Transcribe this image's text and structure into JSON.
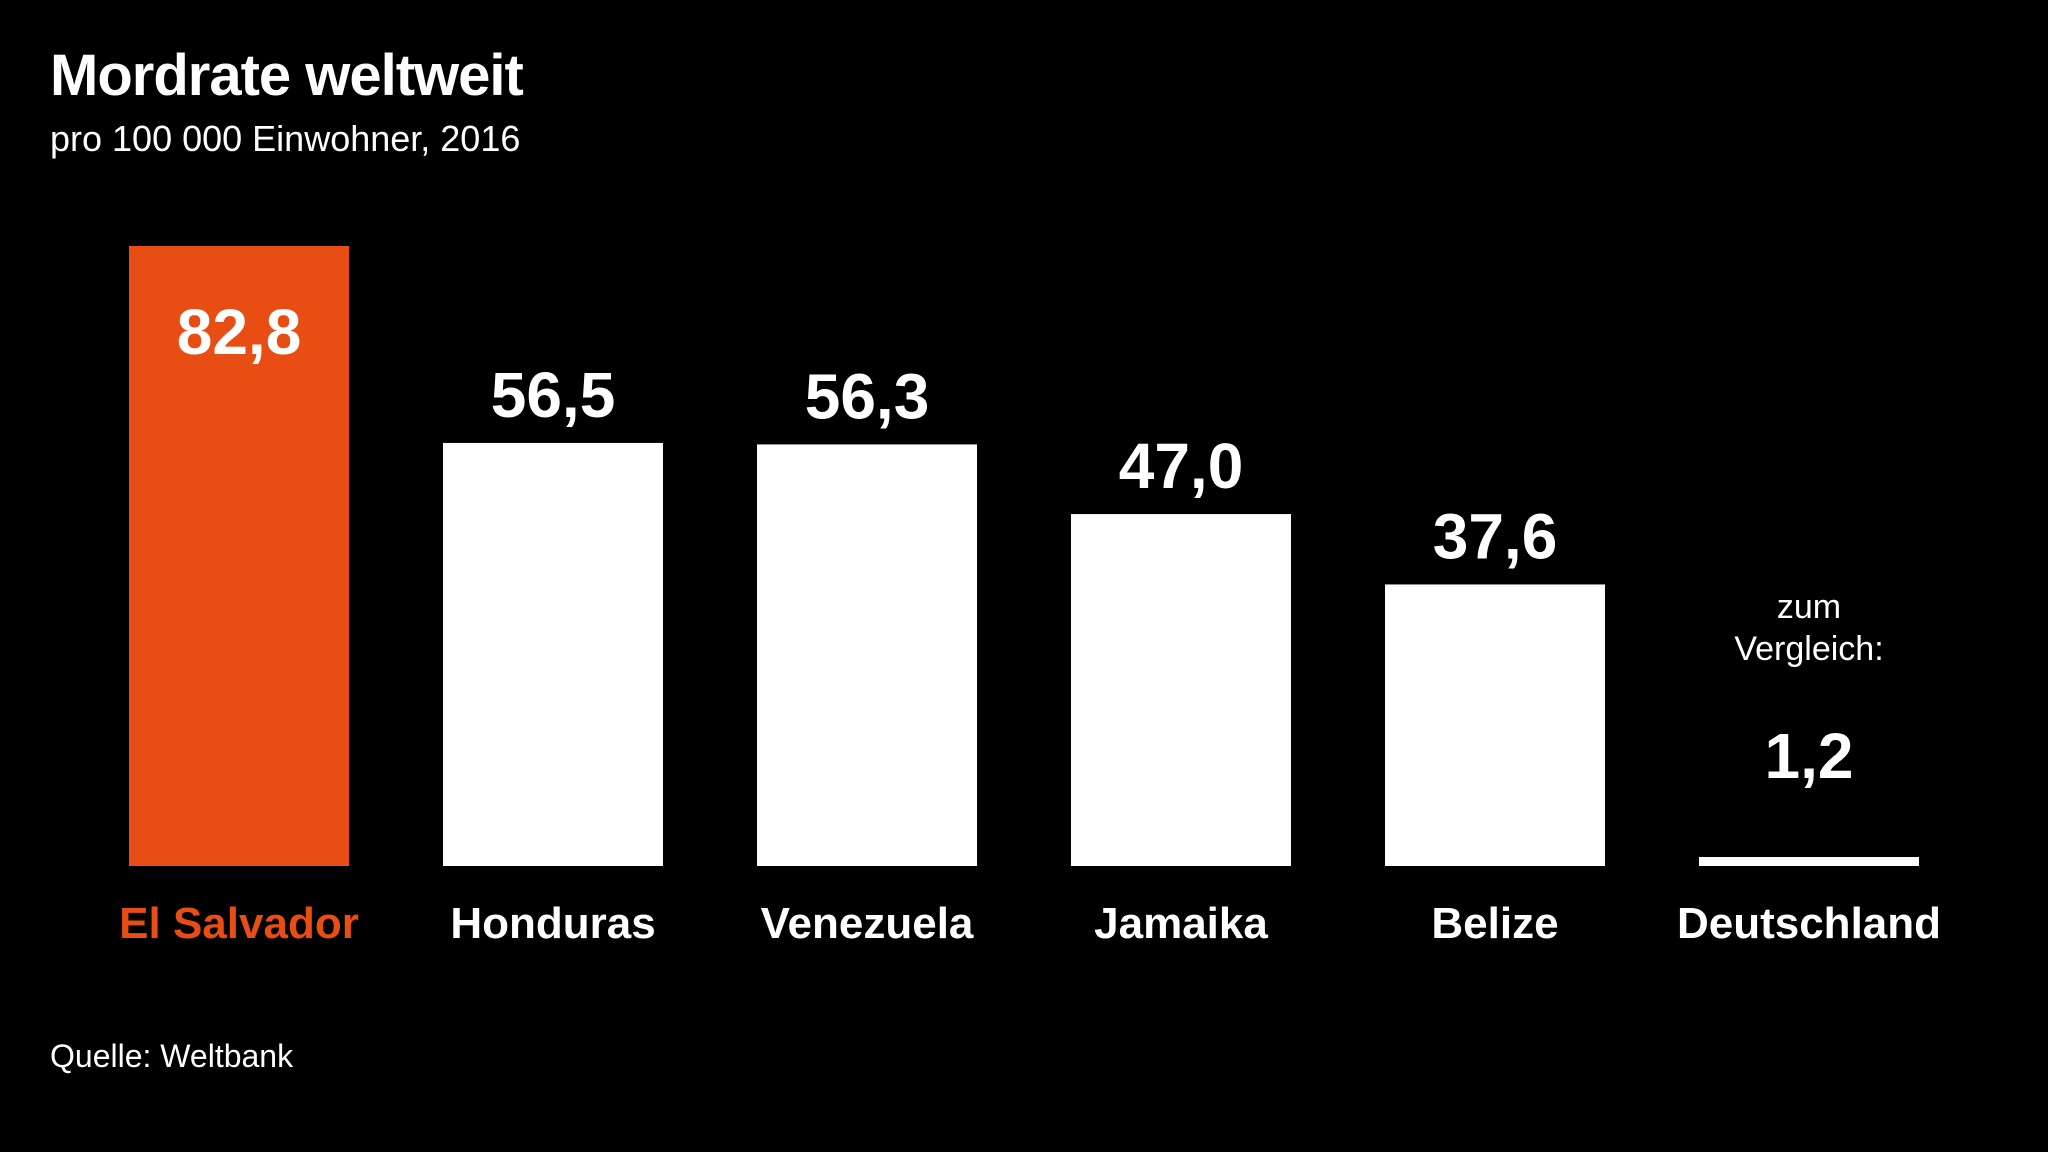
{
  "chart_data": {
    "type": "bar",
    "title": "Mordrate weltweit",
    "subtitle": "pro 100 000 Einwohner, 2016",
    "source": "Quelle: Weltbank",
    "categories": [
      "El Salvador",
      "Honduras",
      "Venezuela",
      "Jamaika",
      "Belize",
      "Deutschland"
    ],
    "values": [
      82.8,
      56.5,
      56.3,
      47.0,
      37.6,
      1.2
    ],
    "value_labels": [
      "82,8",
      "56,5",
      "56,3",
      "47,0",
      "37,6",
      "1,2"
    ],
    "highlight_index": 0,
    "comparison_note": {
      "index": 5,
      "lines": [
        "zum",
        "Vergleich:"
      ]
    },
    "ylim": [
      0,
      82.8
    ],
    "grid": false,
    "legend": "none"
  },
  "colors": {
    "background": "#000000",
    "bar": "#ffffff",
    "highlight": "#e84e13",
    "text": "#ffffff",
    "highlight_text": "#e84e13"
  }
}
